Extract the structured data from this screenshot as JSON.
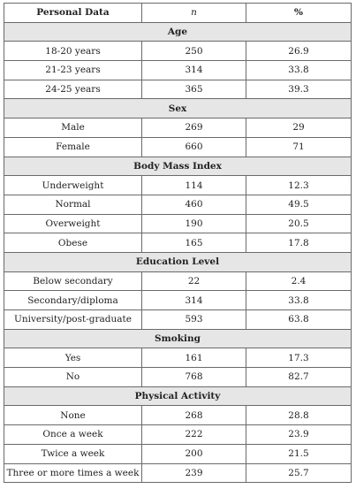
{
  "table": {
    "headers": [
      "Personal Data",
      "n",
      "%"
    ],
    "sections": [
      {
        "title": "Age",
        "rows": [
          [
            "18-20 years",
            "250",
            "26.9"
          ],
          [
            "21-23 years",
            "314",
            "33.8"
          ],
          [
            "24-25 years",
            "365",
            "39.3"
          ]
        ]
      },
      {
        "title": "Sex",
        "rows": [
          [
            "Male",
            "269",
            "29"
          ],
          [
            "Female",
            "660",
            "71"
          ]
        ]
      },
      {
        "title": "Body Mass Index",
        "rows": [
          [
            "Underweight",
            "114",
            "12.3"
          ],
          [
            "Normal",
            "460",
            "49.5"
          ],
          [
            "Overweight",
            "190",
            "20.5"
          ],
          [
            "Obese",
            "165",
            "17.8"
          ]
        ]
      },
      {
        "title": "Education Level",
        "rows": [
          [
            "Below secondary",
            "22",
            "2.4"
          ],
          [
            "Secondary/diploma",
            "314",
            "33.8"
          ],
          [
            "University/post-graduate",
            "593",
            "63.8"
          ]
        ]
      },
      {
        "title": "Smoking",
        "rows": [
          [
            "Yes",
            "161",
            "17.3"
          ],
          [
            "No",
            "768",
            "82.7"
          ]
        ]
      },
      {
        "title": "Physical Activity",
        "rows": [
          [
            "None",
            "268",
            "28.8"
          ],
          [
            "Once a week",
            "222",
            "23.9"
          ],
          [
            "Twice a week",
            "200",
            "21.5"
          ],
          [
            "Three or more times a week",
            "239",
            "25.7"
          ]
        ]
      }
    ]
  }
}
